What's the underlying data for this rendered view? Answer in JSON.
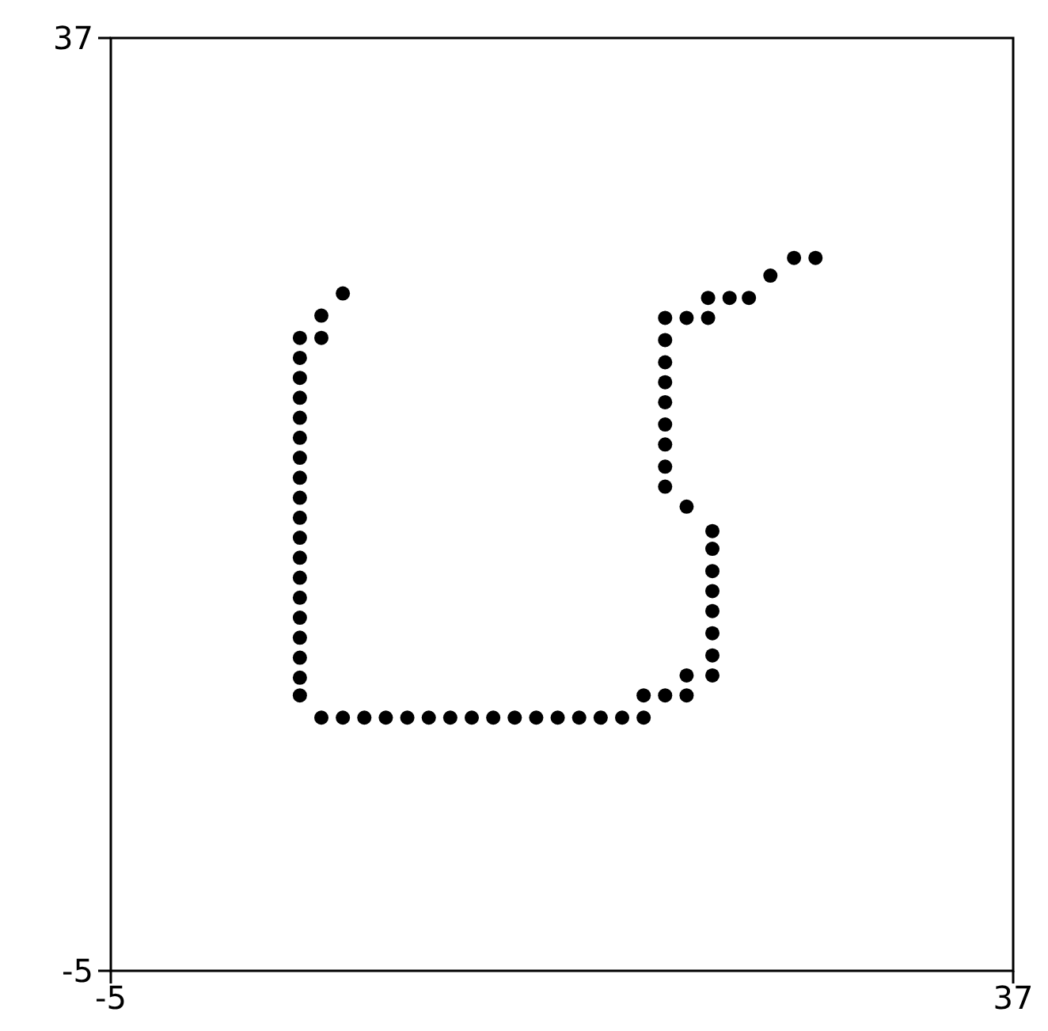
{
  "chart_data": {
    "type": "scatter",
    "marker": "circle",
    "xlim": [
      -5,
      37
    ],
    "ylim": [
      -5,
      37
    ],
    "xticks": [
      -5,
      37
    ],
    "yticks": [
      -5,
      37
    ],
    "series": [
      {
        "color": "#000000",
        "x": [
          5.8,
          4.8,
          4.8,
          3.8,
          3.8,
          3.8,
          3.8,
          3.8,
          3.8,
          3.8,
          3.8,
          3.8,
          3.8,
          3.8,
          3.8,
          3.8,
          3.8,
          3.8,
          3.8,
          3.8,
          3.8,
          3.8,
          4.8,
          5.8,
          6.8,
          7.8,
          8.8,
          9.8,
          10.8,
          11.8,
          12.8,
          13.8,
          14.8,
          15.8,
          16.8,
          17.8,
          18.8,
          19.8,
          19.8,
          20.8,
          21.8,
          21.8,
          23.0,
          23.0,
          23.0,
          23.0,
          23.0,
          23.0,
          23.0,
          23.0,
          21.8,
          20.8,
          20.8,
          20.8,
          20.8,
          20.8,
          20.8,
          20.8,
          20.8,
          20.8,
          21.8,
          22.8,
          22.8,
          23.8,
          24.7,
          25.7,
          26.8,
          27.8
        ],
        "values": [
          25.5,
          24.5,
          23.5,
          23.5,
          22.6,
          21.7,
          20.8,
          19.9,
          19.0,
          18.1,
          17.2,
          16.3,
          15.4,
          14.5,
          13.6,
          12.7,
          11.8,
          10.9,
          10.0,
          9.1,
          8.2,
          7.4,
          6.4,
          6.4,
          6.4,
          6.4,
          6.4,
          6.4,
          6.4,
          6.4,
          6.4,
          6.4,
          6.4,
          6.4,
          6.4,
          6.4,
          6.4,
          6.4,
          7.4,
          7.4,
          7.4,
          8.3,
          8.3,
          9.2,
          10.2,
          11.2,
          12.1,
          13.0,
          14.0,
          14.8,
          15.9,
          16.8,
          17.7,
          18.7,
          19.6,
          20.6,
          21.5,
          22.4,
          23.4,
          24.4,
          24.4,
          24.4,
          25.3,
          25.3,
          25.3,
          26.3,
          27.1,
          27.1
        ]
      }
    ]
  }
}
